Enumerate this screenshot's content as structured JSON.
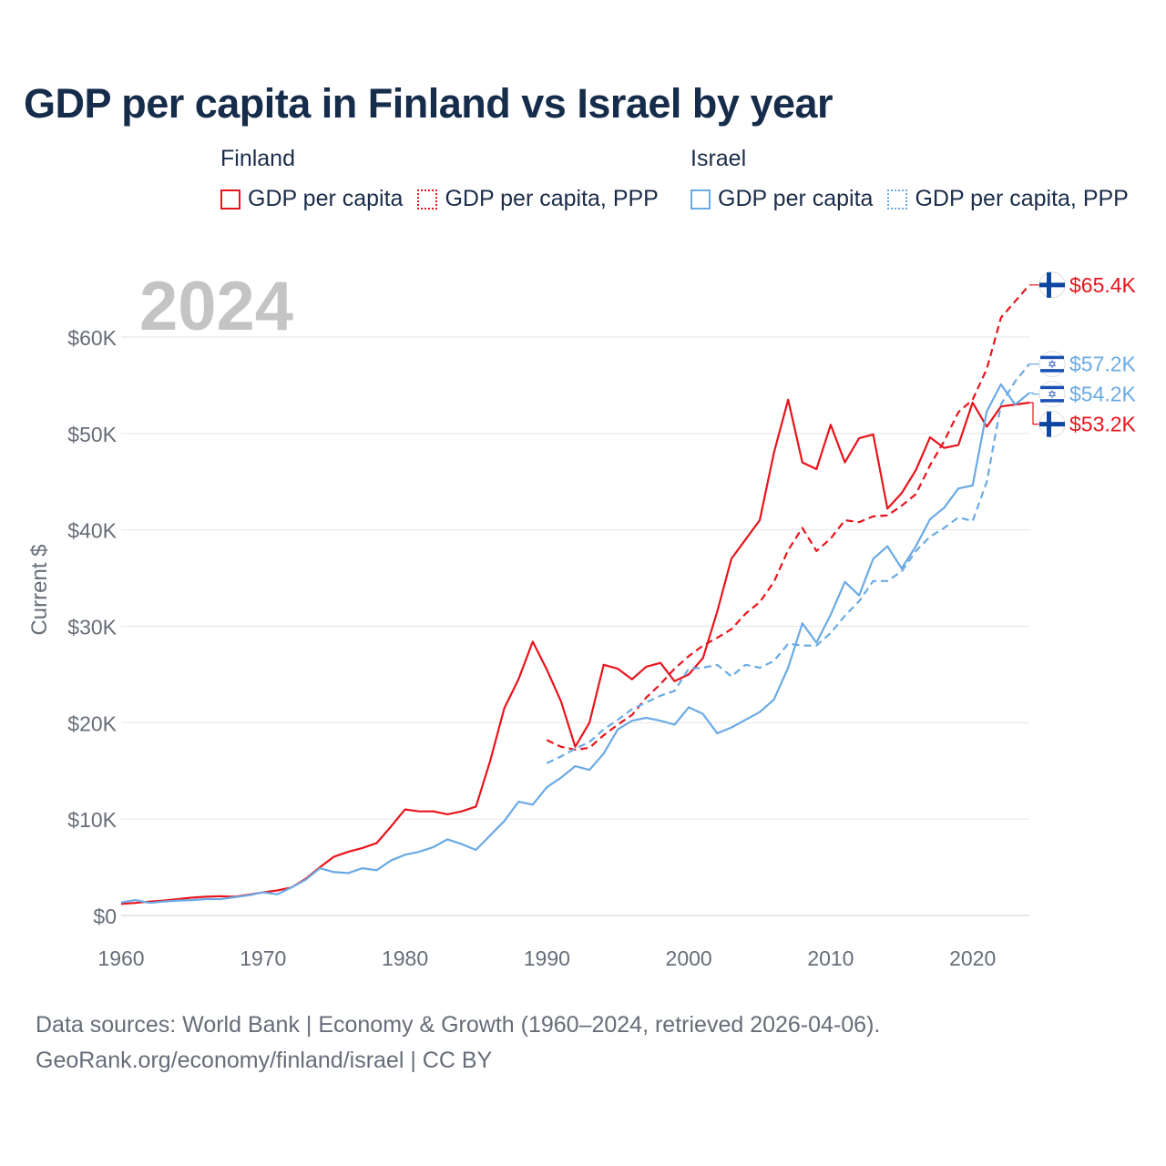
{
  "title": "GDP per capita in Finland vs Israel by year",
  "legend": {
    "groups": [
      {
        "name": "Finland",
        "color": "#e8141c",
        "items": [
          {
            "label": "GDP per capita",
            "style": "solid"
          },
          {
            "label": "GDP per capita, PPP",
            "style": "dotted"
          }
        ]
      },
      {
        "name": "Israel",
        "color": "#6aaae4",
        "items": [
          {
            "label": "GDP per capita",
            "style": "solid"
          },
          {
            "label": "GDP per capita, PPP",
            "style": "dotted"
          }
        ]
      }
    ]
  },
  "chart_data": {
    "type": "line",
    "title": "GDP per capita in Finland vs Israel by year",
    "year_label": "2024",
    "xlabel": "",
    "ylabel": "Current $",
    "xlim": [
      1960,
      2024
    ],
    "ylim": [
      0,
      60000
    ],
    "x_ticks": [
      1960,
      1970,
      1980,
      1990,
      2000,
      2010,
      2020
    ],
    "y_ticks": [
      0,
      10000,
      20000,
      30000,
      40000,
      50000,
      60000
    ],
    "y_tick_labels": [
      "$0",
      "$10K",
      "$20K",
      "$30K",
      "$40K",
      "$50K",
      "$60K"
    ],
    "grid": true,
    "series": [
      {
        "name": "Finland GDP per capita",
        "country": "Finland",
        "color": "#e8141c",
        "dash": "solid",
        "start_year": 1960,
        "end_label": "$53.2K",
        "flag": "finland",
        "values": [
          1200,
          1300,
          1450,
          1550,
          1700,
          1850,
          1950,
          2000,
          1950,
          2150,
          2400,
          2600,
          2900,
          3800,
          5000,
          6100,
          6600,
          7000,
          7500,
          9200,
          11000,
          10800,
          10800,
          10500,
          10800,
          11300,
          16000,
          21500,
          24500,
          28400,
          25500,
          22200,
          17500,
          20000,
          26000,
          25600,
          24500,
          25800,
          26200,
          24300,
          25000,
          26700,
          31500,
          37000,
          39000,
          41000,
          48000,
          53500,
          47000,
          46300,
          50900,
          47000,
          49500,
          49900,
          42200,
          43800,
          46200,
          49600,
          48500,
          48800,
          53200,
          50700,
          52800,
          53000,
          53200
        ]
      },
      {
        "name": "Finland GDP per capita, PPP",
        "country": "Finland",
        "color": "#e8141c",
        "dash": "dashed",
        "start_year": 1990,
        "end_label": "$65.4K",
        "flag": "finland",
        "values": [
          18200,
          17500,
          17200,
          17400,
          18700,
          19800,
          20800,
          22600,
          24000,
          25600,
          26900,
          28000,
          28800,
          29700,
          31300,
          32500,
          34600,
          37900,
          40200,
          37800,
          39100,
          41000,
          40800,
          41400,
          41500,
          42500,
          43700,
          46700,
          49200,
          52200,
          53500,
          56700,
          62000,
          63700,
          65400
        ]
      },
      {
        "name": "Israel GDP per capita",
        "country": "Israel",
        "color": "#6aaae4",
        "dash": "solid",
        "start_year": 1960,
        "end_label": "$54.2K",
        "flag": "israel",
        "values": [
          1350,
          1600,
          1300,
          1450,
          1550,
          1600,
          1700,
          1700,
          1900,
          2100,
          2400,
          2200,
          2900,
          3700,
          4900,
          4500,
          4400,
          4900,
          4700,
          5700,
          6300,
          6600,
          7100,
          7900,
          7400,
          6800,
          8300,
          9800,
          11800,
          11500,
          13300,
          14300,
          15500,
          15100,
          16800,
          19300,
          20200,
          20500,
          20200,
          19800,
          21600,
          20900,
          18900,
          19500,
          20300,
          21100,
          22400,
          25700,
          30300,
          28300,
          31200,
          34600,
          33200,
          37000,
          38300,
          36000,
          38300,
          41100,
          42300,
          44300,
          44600,
          52300,
          55100,
          53000,
          54200
        ]
      },
      {
        "name": "Israel GDP per capita, PPP",
        "country": "Israel",
        "color": "#6aaae4",
        "dash": "dashed",
        "start_year": 1990,
        "end_label": "$57.2K",
        "flag": "israel",
        "values": [
          15800,
          16500,
          17300,
          18000,
          19300,
          20300,
          21400,
          22100,
          22800,
          23300,
          25600,
          25700,
          26000,
          24800,
          26000,
          25700,
          26400,
          28200,
          28000,
          28000,
          29300,
          31100,
          32600,
          34700,
          34700,
          35700,
          37800,
          39300,
          40200,
          41300,
          40900,
          45000,
          53000,
          55400,
          57200
        ]
      }
    ]
  },
  "footer": {
    "sources": "Data sources: World Bank | Economy & Growth (1960–2024, retrieved 2026-04-06).",
    "url": "GeoRank.org/economy/finland/israel | CC BY"
  }
}
